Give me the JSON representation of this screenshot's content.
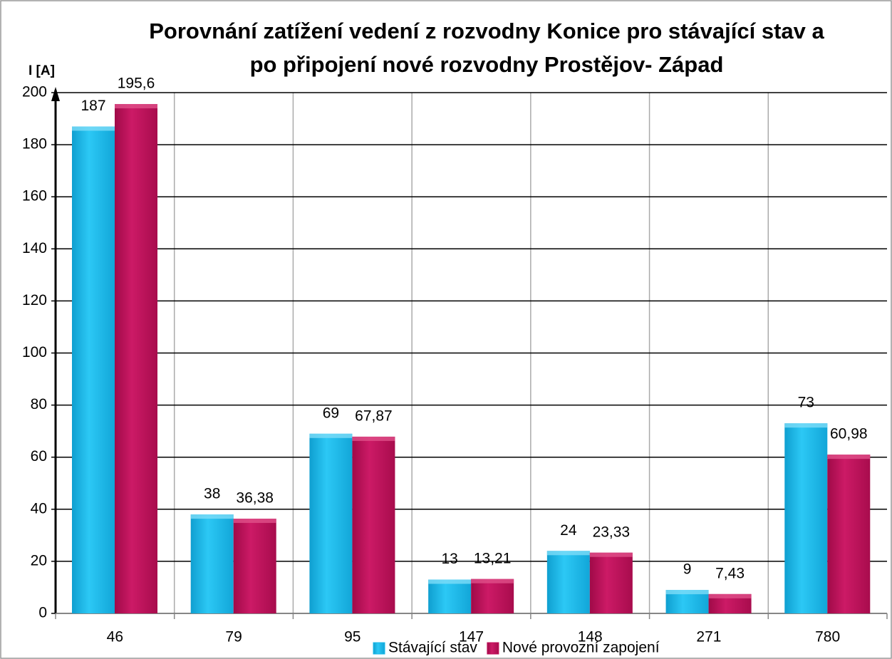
{
  "chart_data": {
    "type": "bar",
    "title": [
      "Porovnání zatížení vedení z rozvodny Konice pro stávající stav a",
      "po připojení nové rozvodny Prostějov- Západ"
    ],
    "y_label": "I [A]",
    "categories": [
      "46",
      "79",
      "95",
      "147",
      "148",
      "271",
      "780"
    ],
    "series": [
      {
        "name": "Stávající stav",
        "color": "#1ab8e8",
        "values": [
          187,
          38,
          69,
          13,
          24,
          9,
          73
        ]
      },
      {
        "name": "Nové provozní zapojení",
        "color": "#c0105a",
        "values": [
          195.6,
          36.38,
          67.87,
          13.21,
          23.33,
          7.43,
          60.98
        ],
        "value_labels": [
          "195,6",
          "36,38",
          "67,87",
          "13,21",
          "23,33",
          "7,43",
          "60,98"
        ]
      }
    ],
    "ylim": [
      0,
      200
    ],
    "yticks": [
      0,
      20,
      40,
      60,
      80,
      100,
      120,
      140,
      160,
      180,
      200
    ],
    "grid": true,
    "legend": "bottom"
  }
}
